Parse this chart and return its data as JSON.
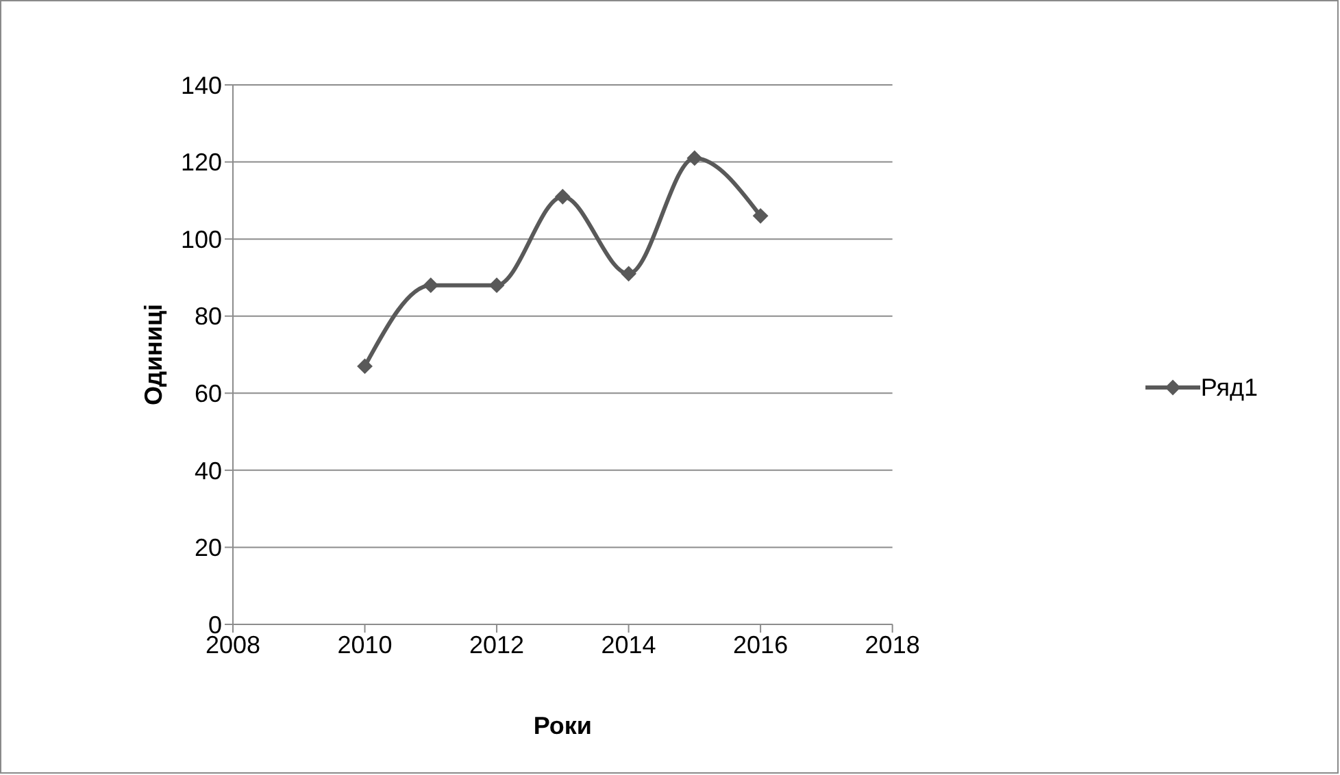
{
  "chart_data": {
    "type": "line",
    "xlabel": "Роки",
    "ylabel": "Одиниці",
    "x": [
      2010,
      2011,
      2012,
      2013,
      2014,
      2015,
      2016
    ],
    "series": [
      {
        "name": "Ряд1",
        "color": "#595959",
        "values": [
          67,
          88,
          88,
          111,
          91,
          121,
          106
        ]
      }
    ],
    "xlim": [
      2008,
      2018
    ],
    "xticks": [
      2008,
      2010,
      2012,
      2014,
      2016,
      2018
    ],
    "ylim": [
      0,
      140
    ],
    "yticks": [
      0,
      20,
      40,
      60,
      80,
      100,
      120,
      140
    ],
    "grid": "y",
    "legend": "right",
    "marker": "diamond",
    "line_style": "solid"
  }
}
